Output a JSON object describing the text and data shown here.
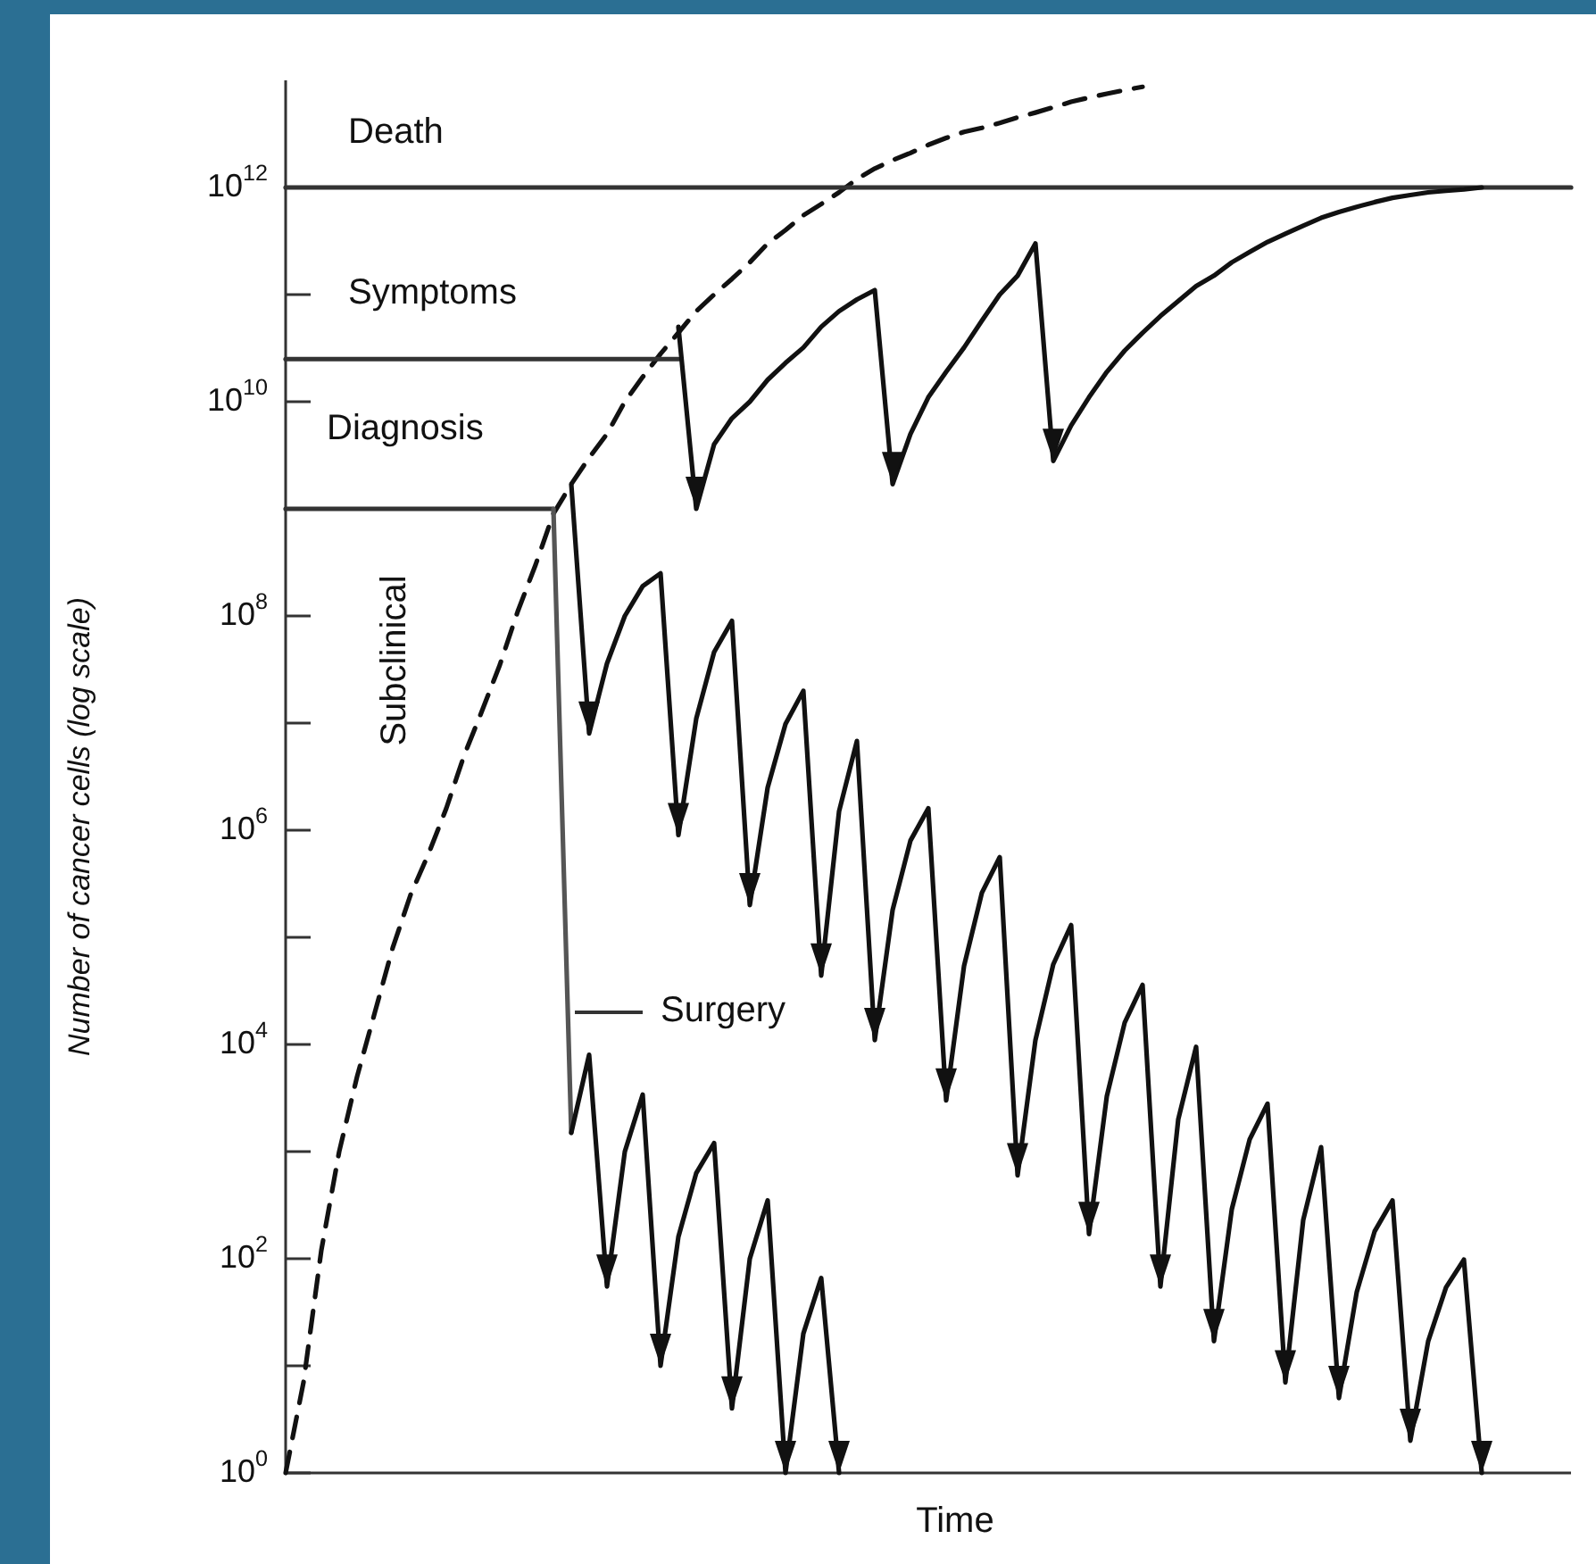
{
  "chart_data": {
    "type": "line",
    "xlabel": "Time",
    "ylabel": "Number of cancer cells (log scale)",
    "log": true,
    "marker": "none",
    "tick_labels": "y",
    "categories": [
      null,
      null,
      null,
      null,
      null,
      null,
      null,
      null,
      null,
      null,
      null,
      null,
      null,
      null,
      null,
      null,
      null,
      null,
      null,
      null,
      null,
      null,
      null,
      null,
      null,
      null,
      null,
      null,
      null,
      null,
      null,
      null,
      null,
      null,
      null,
      null,
      null,
      null,
      null,
      null,
      null,
      null,
      null,
      null,
      null,
      null,
      null,
      null,
      null,
      null,
      null,
      null,
      null,
      null,
      null,
      null,
      null,
      null,
      null,
      null,
      null,
      null,
      null,
      null,
      null,
      null,
      null,
      null,
      null,
      null,
      null,
      null,
      null
    ],
    "ylim": [
      1,
      10000000000000.0
    ],
    "yticks": [
      {
        "value": 1,
        "label": "10$^{0}$"
      },
      {
        "value": 10,
        "label": null
      },
      {
        "value": 100,
        "label": "10$^{2}$"
      },
      {
        "value": 1000,
        "label": null
      },
      {
        "value": 10000,
        "label": "10$^{4}$"
      },
      {
        "value": 100000,
        "label": null
      },
      {
        "value": 1000000,
        "label": "10$^{6}$"
      },
      {
        "value": 10000000.0,
        "label": null
      },
      {
        "value": 100000000.0,
        "label": "10$^{8}$"
      },
      {
        "value": 1000000000.0,
        "label": null
      },
      {
        "value": 10000000000.0,
        "label": "10$^{10}$"
      },
      {
        "value": 100000000000.0,
        "label": null
      },
      {
        "value": 1000000000000.0,
        "label": "10$^{12}$"
      }
    ],
    "series": [
      {
        "color": "#111111",
        "line_style": "dashed",
        "values": [
          1,
          7,
          120,
          1000,
          5000,
          20000.0,
          80000.0,
          250000.0,
          600000.0,
          1600000.0,
          5000000.0,
          13000000.0,
          35000000.0,
          110000000.0,
          300000000.0,
          900000000.0,
          1700000000.0,
          3000000000.0,
          5000000000.0,
          10000000000.0,
          17000000000.0,
          28000000000.0,
          44000000000.0,
          70000000000.0,
          100000000000.0,
          140000000000.0,
          200000000000.0,
          300000000000.0,
          400000000000.0,
          550000000000.0,
          700000000000.0,
          900000000000.0,
          1200000000000.0,
          1500000000000.0,
          1800000000000.0,
          2100000000000.0,
          2500000000000.0,
          2900000000000.0,
          3300000000000.0,
          3600000000000.0,
          4000000000000.0,
          4500000000000.0,
          5000000000000.0,
          5600000000000.0,
          6300000000000.0,
          6900000000000.0,
          7500000000000.0,
          8100000000000.0,
          8700000000000.0,
          null,
          null,
          null,
          null,
          null,
          null,
          null,
          null,
          null,
          null,
          null,
          null,
          null,
          null,
          null,
          null,
          null,
          null,
          null,
          null,
          null,
          null,
          null,
          null
        ]
      },
      {
        "color": "#333333",
        "values": [
          1000000000000.0,
          1000000000000.0,
          1000000000000.0,
          1000000000000.0,
          1000000000000.0,
          1000000000000.0,
          1000000000000.0,
          1000000000000.0,
          1000000000000.0,
          1000000000000.0,
          1000000000000.0,
          1000000000000.0,
          1000000000000.0,
          1000000000000.0,
          1000000000000.0,
          1000000000000.0,
          1000000000000.0,
          1000000000000.0,
          1000000000000.0,
          1000000000000.0,
          1000000000000.0,
          1000000000000.0,
          1000000000000.0,
          1000000000000.0,
          1000000000000.0,
          1000000000000.0,
          1000000000000.0,
          1000000000000.0,
          1000000000000.0,
          1000000000000.0,
          1000000000000.0,
          1000000000000.0,
          1000000000000.0,
          1000000000000.0,
          1000000000000.0,
          1000000000000.0,
          1000000000000.0,
          1000000000000.0,
          1000000000000.0,
          1000000000000.0,
          1000000000000.0,
          1000000000000.0,
          1000000000000.0,
          1000000000000.0,
          1000000000000.0,
          1000000000000.0,
          1000000000000.0,
          1000000000000.0,
          1000000000000.0,
          1000000000000.0,
          1000000000000.0,
          1000000000000.0,
          1000000000000.0,
          1000000000000.0,
          1000000000000.0,
          1000000000000.0,
          1000000000000.0,
          1000000000000.0,
          1000000000000.0,
          1000000000000.0,
          1000000000000.0,
          1000000000000.0,
          1000000000000.0,
          1000000000000.0,
          1000000000000.0,
          1000000000000.0,
          1000000000000.0,
          1000000000000.0,
          1000000000000.0,
          1000000000000.0,
          1000000000000.0,
          1000000000000.0,
          1000000000000.0
        ]
      },
      {
        "color": "#333333",
        "values": [
          25000000000.0,
          25000000000.0,
          25000000000.0,
          25000000000.0,
          25000000000.0,
          25000000000.0,
          25000000000.0,
          25000000000.0,
          25000000000.0,
          25000000000.0,
          25000000000.0,
          25000000000.0,
          25000000000.0,
          25000000000.0,
          25000000000.0,
          25000000000.0,
          25000000000.0,
          25000000000.0,
          25000000000.0,
          25000000000.0,
          25000000000.0,
          25000000000.0,
          25000000000.0,
          null,
          null,
          null,
          null,
          null,
          null,
          null,
          null,
          null,
          null,
          null,
          null,
          null,
          null,
          null,
          null,
          null,
          null,
          null,
          null,
          null,
          null,
          null,
          null,
          null,
          null,
          null,
          null,
          null,
          null,
          null,
          null,
          null,
          null,
          null,
          null,
          null,
          null,
          null,
          null,
          null,
          null,
          null,
          null,
          null,
          null,
          null,
          null,
          null,
          null
        ]
      },
      {
        "color": "#333333",
        "values": [
          1000000000.0,
          1000000000.0,
          1000000000.0,
          1000000000.0,
          1000000000.0,
          1000000000.0,
          1000000000.0,
          1000000000.0,
          1000000000.0,
          1000000000.0,
          1000000000.0,
          1000000000.0,
          1000000000.0,
          1000000000.0,
          1000000000.0,
          1000000000.0,
          null,
          null,
          null,
          null,
          null,
          null,
          null,
          null,
          null,
          null,
          null,
          null,
          null,
          null,
          null,
          null,
          null,
          null,
          null,
          null,
          null,
          null,
          null,
          null,
          null,
          null,
          null,
          null,
          null,
          null,
          null,
          null,
          null,
          null,
          null,
          null,
          null,
          null,
          null,
          null,
          null,
          null,
          null,
          null,
          null,
          null,
          null,
          null,
          null,
          null,
          null,
          null,
          null,
          null,
          null,
          null,
          null
        ]
      },
      {
        "color": "#555555",
        "values": [
          null,
          null,
          null,
          null,
          null,
          null,
          null,
          null,
          null,
          null,
          null,
          null,
          null,
          null,
          null,
          1000000000.0,
          1500.0,
          null,
          null,
          null,
          null,
          null,
          null,
          null,
          null,
          null,
          null,
          null,
          null,
          null,
          null,
          null,
          null,
          null,
          null,
          null,
          null,
          null,
          null,
          null,
          null,
          null,
          null,
          null,
          null,
          null,
          null,
          null,
          null,
          null,
          null,
          null,
          null,
          null,
          null,
          null,
          null,
          null,
          null,
          null,
          null,
          null,
          null,
          null,
          null,
          null,
          null,
          null,
          null,
          null,
          null,
          null,
          null
        ]
      },
      {
        "color": "#111111",
        "values": [
          null,
          null,
          null,
          null,
          null,
          null,
          null,
          null,
          null,
          null,
          null,
          null,
          null,
          null,
          null,
          null,
          null,
          null,
          null,
          null,
          null,
          null,
          50000000000.0,
          1000000000.0,
          4000000000.0,
          7000000000.0,
          10000000000.0,
          16000000000.0,
          23000000000.0,
          32000000000.0,
          50000000000.0,
          70000000000.0,
          90000000000.0,
          110000000000.0,
          1700000000.0,
          5000000000.0,
          11000000000.0,
          19000000000.0,
          32000000000.0,
          57000000000.0,
          100000000000.0,
          150000000000.0,
          300000000000.0,
          2800000000.0,
          6000000000.0,
          11000000000.0,
          19000000000.0,
          30000000000.0,
          44000000000.0,
          63000000000.0,
          87000000000.0,
          120000000000.0,
          150000000000.0,
          200000000000.0,
          250000000000.0,
          310000000000.0,
          370000000000.0,
          440000000000.0,
          520000000000.0,
          590000000000.0,
          660000000000.0,
          730000000000.0,
          800000000000.0,
          850000000000.0,
          900000000000.0,
          930000000000.0,
          960000000000.0,
          1000000000000.0,
          null,
          null,
          null,
          null,
          null
        ]
      },
      {
        "color": "#111111",
        "values": [
          null,
          null,
          null,
          null,
          null,
          null,
          null,
          null,
          null,
          null,
          null,
          null,
          null,
          null,
          null,
          null,
          1700000000.0,
          8000000.0,
          36000000.0,
          100000000.0,
          190000000.0,
          250000000.0,
          900000.0,
          11000000.0,
          46000000.0,
          90000000.0,
          200000.0,
          2500000.0,
          9800000.0,
          20000000.0,
          44000.0,
          1500000.0,
          6800000.0,
          11000.0,
          180000.0,
          800000.0,
          1600000.0,
          3000.0,
          54000.0,
          260000.0,
          560000.0,
          600,
          11000.0,
          56000.0,
          130000.0,
          170,
          3300.0,
          16000.0,
          36000.0,
          55,
          2000.0,
          9500.0,
          17,
          290,
          1300.0,
          2800.0,
          7,
          230,
          1100.0,
          5,
          49,
          180,
          350,
          2,
          17,
          54,
          98,
          1,
          null,
          null,
          null,
          null,
          null
        ]
      },
      {
        "color": "#111111",
        "values": [
          null,
          null,
          null,
          null,
          null,
          null,
          null,
          null,
          null,
          null,
          null,
          null,
          null,
          null,
          null,
          null,
          1500.0,
          8000.0,
          55,
          1000.0,
          3400.0,
          10,
          160,
          630,
          1200.0,
          4,
          100,
          350,
          1,
          20,
          66,
          1,
          null,
          null,
          null,
          null,
          null,
          null,
          null,
          null,
          null,
          null,
          null,
          null,
          null,
          null,
          null,
          null,
          null,
          null,
          null,
          null,
          null,
          null,
          null,
          null,
          null,
          null,
          null,
          null,
          null,
          null,
          null,
          null,
          null,
          null,
          null,
          null,
          null,
          null,
          null,
          null,
          null
        ]
      }
    ],
    "annotations": [
      {
        "text": "Death",
        "y": 1000000000000.0
      },
      {
        "text": "Symptoms",
        "y": 25000000000.0
      },
      {
        "text": "Diagnosis",
        "y": 1000000000.0
      },
      "Surgery",
      "Subclinical"
    ]
  }
}
